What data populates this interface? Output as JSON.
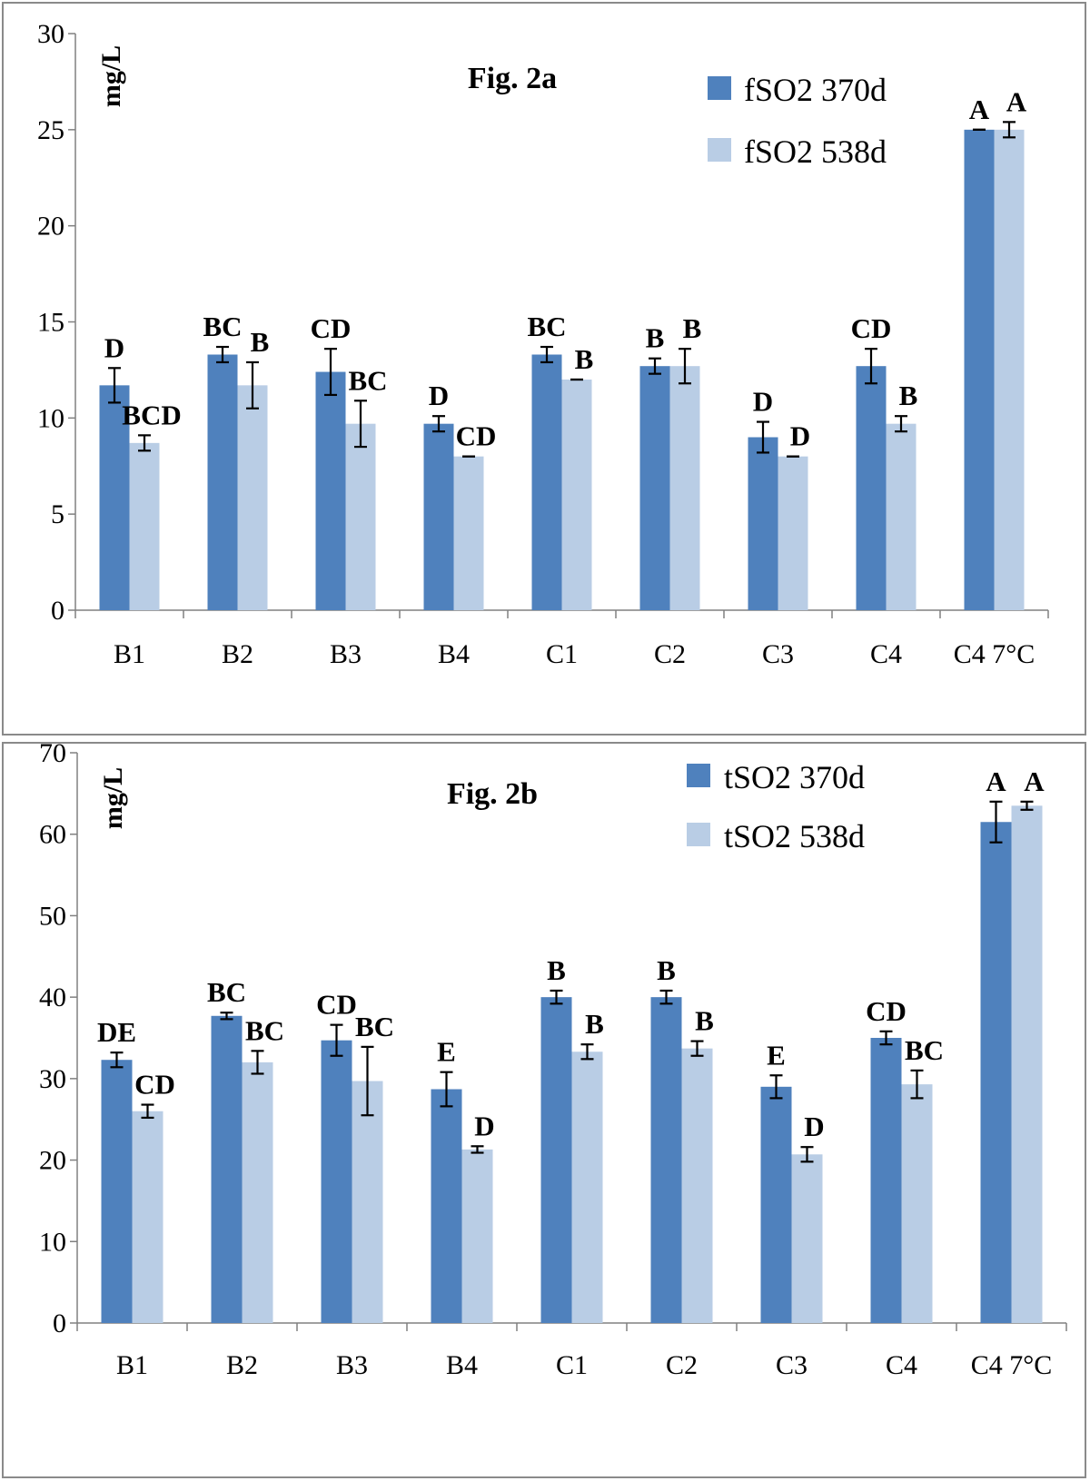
{
  "chart_data": [
    {
      "type": "bar",
      "title": "Fig. 2a",
      "ylabel": "mg/L",
      "xlabel": "",
      "ylim": [
        0,
        30
      ],
      "yticks": [
        0,
        5,
        10,
        15,
        20,
        25,
        30
      ],
      "categories": [
        "B1",
        "B2",
        "B3",
        "B4",
        "C1",
        "C2",
        "C3",
        "C4",
        "C4 7°C"
      ],
      "legend_position": "top-right",
      "series": [
        {
          "name": "fSO2 370d",
          "color": "#4f81bd",
          "values": [
            11.7,
            13.3,
            12.4,
            9.7,
            13.3,
            12.7,
            9.0,
            12.7,
            25.0
          ],
          "errors": [
            0.9,
            0.4,
            1.2,
            0.4,
            0.4,
            0.4,
            0.8,
            0.9,
            0.0
          ],
          "labels": [
            "D",
            "BC",
            "CD",
            "D",
            "BC",
            "B",
            "D",
            "CD",
            "A"
          ]
        },
        {
          "name": "fSO2 538d",
          "color": "#b9cde5",
          "values": [
            8.7,
            11.7,
            9.7,
            8.0,
            12.0,
            12.7,
            8.0,
            9.7,
            25.0
          ],
          "errors": [
            0.4,
            1.2,
            1.2,
            0.0,
            0.0,
            0.9,
            0.0,
            0.4,
            0.4
          ],
          "labels": [
            "BCD",
            "B",
            "BC",
            "CD",
            "B",
            "B",
            "D",
            "B",
            "A"
          ]
        }
      ]
    },
    {
      "type": "bar",
      "title": "Fig. 2b",
      "ylabel": "mg/L",
      "xlabel": "",
      "ylim": [
        0,
        70
      ],
      "yticks": [
        0,
        10,
        20,
        30,
        40,
        50,
        60,
        70
      ],
      "categories": [
        "B1",
        "B2",
        "B3",
        "B4",
        "C1",
        "C2",
        "C3",
        "C4",
        "C4 7°C"
      ],
      "legend_position": "top-right",
      "series": [
        {
          "name": "tSO2 370d",
          "color": "#4f81bd",
          "values": [
            32.3,
            37.7,
            34.7,
            28.7,
            40.0,
            40.0,
            29.0,
            35.0,
            61.5
          ],
          "errors": [
            0.9,
            0.4,
            1.9,
            2.1,
            0.8,
            0.8,
            1.4,
            0.8,
            2.5
          ],
          "labels": [
            "DE",
            "BC",
            "CD",
            "E",
            "B",
            "B",
            "E",
            "CD",
            "A"
          ]
        },
        {
          "name": "tSO2 538d",
          "color": "#b9cde5",
          "values": [
            26.0,
            32.0,
            29.7,
            21.3,
            33.3,
            33.7,
            20.7,
            29.3,
            63.5
          ],
          "errors": [
            0.8,
            1.4,
            4.2,
            0.4,
            0.9,
            0.9,
            0.9,
            1.7,
            0.5
          ],
          "labels": [
            "CD",
            "BC",
            "BC",
            "D",
            "B",
            "B",
            "D",
            "BC",
            "A"
          ]
        }
      ]
    }
  ]
}
